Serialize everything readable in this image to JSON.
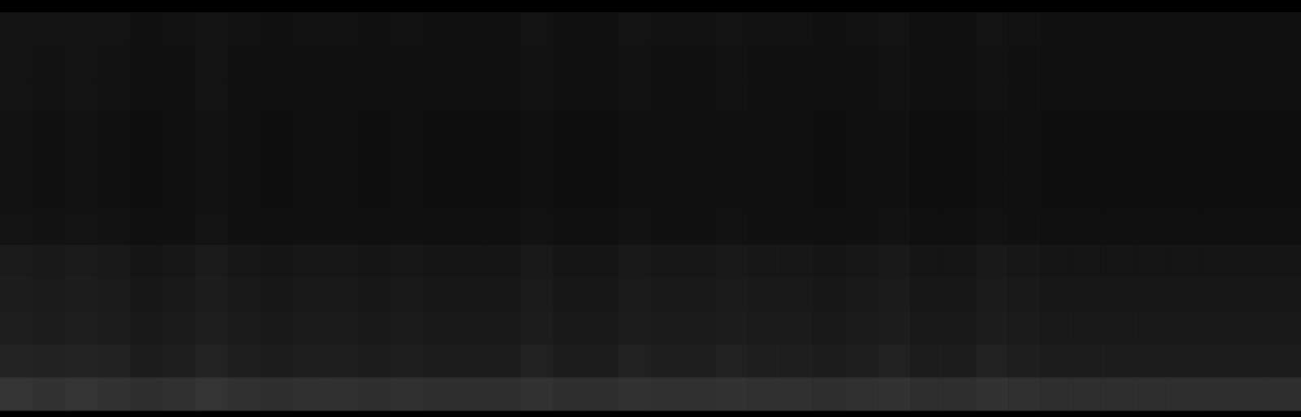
{
  "chart_data": {
    "type": "heatmap",
    "tick_labels": false,
    "zlim": [
      0,
      255
    ],
    "cells": [
      [
        20,
        19,
        20,
        19,
        17,
        18,
        20,
        18,
        17,
        18,
        18,
        17,
        18,
        17,
        17,
        17,
        19,
        17,
        17,
        19,
        18,
        18,
        19,
        18,
        18,
        17,
        18,
        19,
        17,
        17,
        19,
        18,
        17,
        17,
        17,
        17,
        17,
        17,
        17,
        17
      ],
      [
        19,
        18,
        19,
        18,
        16,
        17,
        19,
        17,
        16,
        17,
        17,
        16,
        17,
        16,
        16,
        16,
        18,
        16,
        16,
        18,
        17,
        17,
        18,
        17,
        17,
        16,
        17,
        18,
        16,
        16,
        18,
        17,
        16,
        16,
        16,
        16,
        16,
        16,
        16,
        16
      ],
      [
        19,
        18,
        19,
        18,
        16,
        17,
        19,
        17,
        16,
        17,
        17,
        16,
        17,
        16,
        16,
        16,
        18,
        16,
        16,
        18,
        17,
        17,
        18,
        17,
        17,
        16,
        17,
        18,
        16,
        16,
        18,
        17,
        16,
        16,
        16,
        16,
        16,
        16,
        16,
        16
      ],
      [
        18,
        17,
        18,
        17,
        15,
        16,
        18,
        16,
        15,
        16,
        16,
        15,
        16,
        15,
        15,
        15,
        17,
        15,
        15,
        17,
        16,
        16,
        17,
        16,
        16,
        15,
        16,
        17,
        15,
        15,
        17,
        16,
        15,
        15,
        15,
        15,
        15,
        15,
        15,
        15
      ],
      [
        18,
        17,
        18,
        17,
        15,
        16,
        18,
        16,
        15,
        16,
        16,
        15,
        16,
        15,
        15,
        15,
        17,
        15,
        15,
        17,
        16,
        16,
        17,
        16,
        16,
        15,
        16,
        17,
        15,
        15,
        17,
        16,
        15,
        15,
        15,
        15,
        15,
        15,
        15,
        15
      ],
      [
        18,
        17,
        18,
        17,
        15,
        16,
        18,
        16,
        15,
        16,
        16,
        15,
        16,
        15,
        15,
        15,
        17,
        15,
        15,
        17,
        16,
        16,
        17,
        16,
        16,
        15,
        16,
        17,
        15,
        15,
        17,
        16,
        15,
        15,
        15,
        15,
        15,
        15,
        15,
        15
      ],
      [
        19,
        18,
        19,
        18,
        16,
        17,
        19,
        17,
        16,
        17,
        17,
        16,
        17,
        16,
        16,
        16,
        18,
        16,
        16,
        18,
        17,
        17,
        18,
        17,
        17,
        16,
        17,
        18,
        16,
        16,
        18,
        17,
        16,
        16,
        16,
        16,
        16,
        16,
        16,
        16
      ],
      [
        27,
        25,
        27,
        25,
        21,
        23,
        27,
        23,
        21,
        23,
        23,
        21,
        23,
        21,
        21,
        21,
        25,
        21,
        21,
        25,
        23,
        23,
        25,
        23,
        23,
        21,
        23,
        25,
        21,
        21,
        25,
        23,
        21,
        21,
        21,
        21,
        21,
        21,
        21,
        21
      ],
      [
        29,
        27,
        29,
        27,
        23,
        25,
        29,
        25,
        23,
        25,
        25,
        23,
        25,
        23,
        23,
        23,
        27,
        23,
        23,
        27,
        25,
        25,
        27,
        25,
        25,
        23,
        25,
        27,
        23,
        23,
        27,
        25,
        23,
        23,
        23,
        23,
        23,
        23,
        23,
        23
      ],
      [
        31,
        29,
        31,
        29,
        25,
        27,
        31,
        27,
        25,
        27,
        27,
        25,
        27,
        25,
        25,
        25,
        29,
        25,
        25,
        29,
        27,
        27,
        29,
        27,
        27,
        25,
        27,
        29,
        25,
        25,
        29,
        27,
        25,
        25,
        25,
        25,
        25,
        25,
        25,
        25
      ],
      [
        35,
        33,
        35,
        33,
        29,
        31,
        35,
        31,
        29,
        31,
        31,
        29,
        31,
        29,
        29,
        29,
        33,
        29,
        29,
        33,
        31,
        31,
        33,
        31,
        31,
        29,
        31,
        33,
        29,
        29,
        33,
        31,
        29,
        29,
        29,
        29,
        29,
        29,
        29,
        29
      ],
      [
        52,
        50,
        52,
        50,
        46,
        48,
        52,
        48,
        46,
        48,
        48,
        46,
        48,
        46,
        46,
        46,
        50,
        46,
        46,
        50,
        48,
        48,
        50,
        48,
        48,
        46,
        48,
        50,
        46,
        46,
        50,
        48,
        46,
        46,
        46,
        46,
        46,
        46,
        46,
        46
      ]
    ]
  }
}
